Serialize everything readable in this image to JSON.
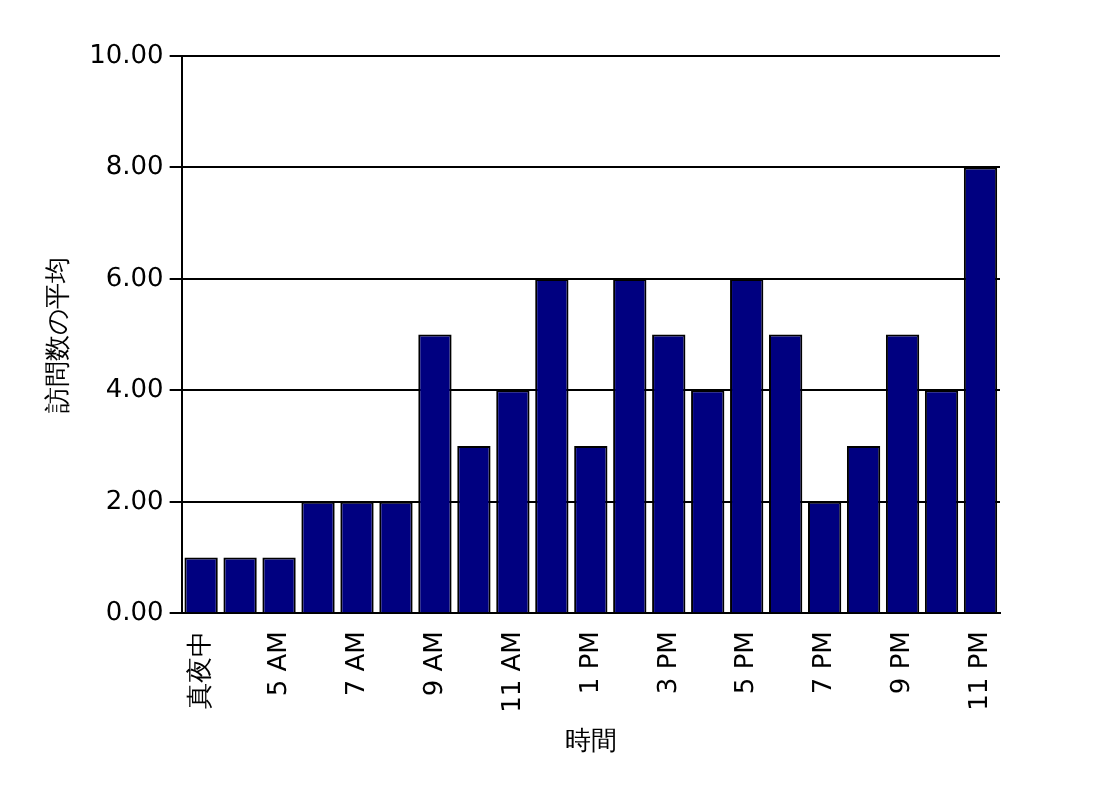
{
  "chart_data": {
    "type": "bar",
    "xlabel": "時間",
    "ylabel": "訪問数の平均",
    "categories": [
      "真夜中",
      null,
      "5 AM",
      null,
      "7 AM",
      null,
      "9 AM",
      null,
      "11 AM",
      null,
      "1 PM",
      null,
      "3 PM",
      null,
      "5 PM",
      null,
      "7 PM",
      null,
      "9 PM",
      null,
      "11 PM"
    ],
    "values": [
      1,
      1,
      1,
      2,
      2,
      2,
      5,
      3,
      4,
      6,
      3,
      6,
      5,
      4,
      6,
      5,
      2,
      3,
      5,
      4,
      8
    ],
    "color": "#000080",
    "ylim": [
      0,
      10
    ],
    "yticks": [
      {
        "value": 0,
        "label": "0.00"
      },
      {
        "value": 2,
        "label": "2.00"
      },
      {
        "value": 4,
        "label": "4.00"
      },
      {
        "value": 6,
        "label": "6.00"
      },
      {
        "value": 8,
        "label": "8.00"
      },
      {
        "value": 10,
        "label": "10.00"
      }
    ],
    "grid": "y"
  }
}
